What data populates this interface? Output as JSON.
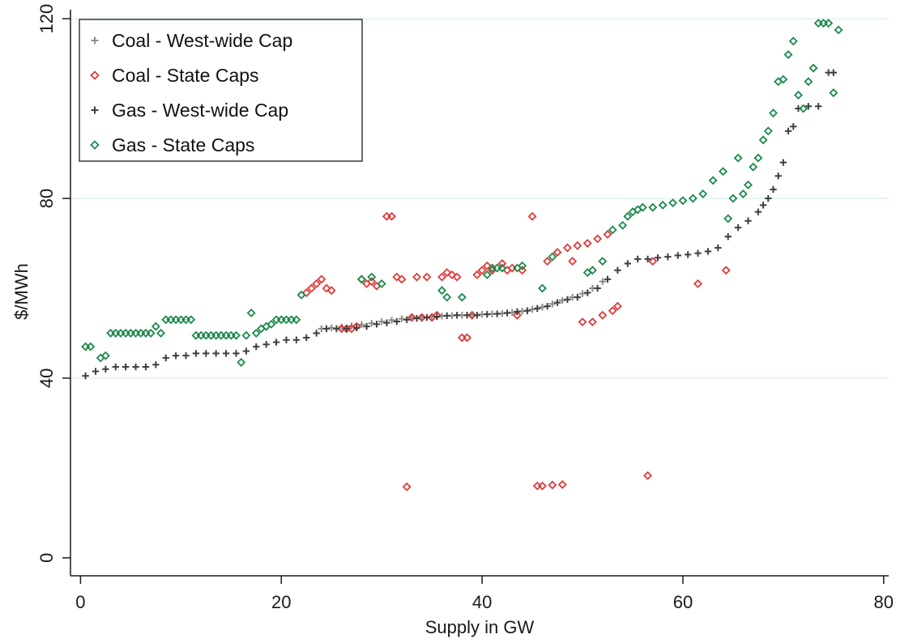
{
  "chart_data": {
    "type": "scatter",
    "title": "",
    "xlabel": "Supply in GW",
    "ylabel": "$/MWh",
    "xlim": [
      -1,
      80.5
    ],
    "ylim": [
      -4,
      122
    ],
    "xticks": [
      0,
      20,
      40,
      60,
      80
    ],
    "yticks": [
      0,
      40,
      80,
      120
    ],
    "grid": "horizontal",
    "legend_position": "top-left",
    "series": [
      {
        "name": "Coal - West-wide Cap",
        "marker": "plus",
        "color": "#8c8c8c",
        "x": [
          24,
          25,
          26,
          27,
          28,
          29,
          30,
          31,
          32,
          33,
          34,
          35,
          36,
          37,
          38,
          39,
          40,
          41,
          42,
          43,
          44,
          45,
          46,
          47,
          48,
          49,
          50,
          51,
          52
        ],
        "y": [
          51,
          51.2,
          51.4,
          51.6,
          51.9,
          52.2,
          52.6,
          52.9,
          53.2,
          53.5,
          53.6,
          53.7,
          53.8,
          53.9,
          54,
          54.1,
          54.2,
          54.3,
          54.4,
          54.6,
          54.9,
          55.3,
          55.8,
          56.5,
          57.3,
          58,
          58.8,
          60,
          61.5
        ]
      },
      {
        "name": "Coal - State Caps",
        "marker": "diamond",
        "color": "#e03a3a",
        "x": [
          22.5,
          23,
          23.5,
          24,
          24.5,
          25,
          26,
          26.5,
          27,
          27.5,
          28,
          28.5,
          29,
          29.5,
          30.5,
          31,
          31.5,
          32,
          32.5,
          33,
          33.5,
          34,
          34.5,
          35,
          35.5,
          36,
          36.5,
          37,
          37.5,
          38,
          38.5,
          39,
          39.5,
          40,
          40.5,
          41,
          42,
          42.5,
          43,
          43.5,
          44,
          45,
          45.5,
          46,
          46.5,
          47,
          47.5,
          48,
          48.5,
          49,
          49.5,
          50,
          50.5,
          51,
          51.5,
          52,
          52.5,
          53,
          53.5,
          56.5,
          57,
          61.5,
          64.3
        ],
        "y": [
          59,
          60,
          61,
          62,
          60,
          59.5,
          51,
          51,
          51,
          51.5,
          62,
          61,
          61.5,
          60.5,
          76,
          76,
          62.5,
          62,
          15.8,
          53.5,
          62.5,
          53.5,
          62.5,
          53.5,
          54,
          62.5,
          63.5,
          63,
          62.5,
          49,
          49,
          54,
          63,
          64,
          65,
          64,
          65.5,
          64,
          64.5,
          54,
          64,
          76,
          16,
          16,
          66,
          16.2,
          68,
          16.3,
          69,
          66,
          69.5,
          52.5,
          70,
          52.5,
          71,
          54,
          72,
          55,
          56,
          18.3,
          66,
          61,
          64
        ]
      },
      {
        "name": "Gas - West-wide Cap",
        "marker": "plus",
        "color": "#3f3f3f",
        "x": [
          0.5,
          1.5,
          2.5,
          3.5,
          4.5,
          5.5,
          6.5,
          7.5,
          8.5,
          9.5,
          10.5,
          11.5,
          12.5,
          13.5,
          14.5,
          15.5,
          16.5,
          17.5,
          18.5,
          19.5,
          20.5,
          21.5,
          22.5,
          23.5,
          24.5,
          25.5,
          26.5,
          27.5,
          28.5,
          29.5,
          30.5,
          31.5,
          32.5,
          33.5,
          34.5,
          35.5,
          36.5,
          37.5,
          38.5,
          39.5,
          40.5,
          41.5,
          42.5,
          43.5,
          44.5,
          45.5,
          46.5,
          47.5,
          48.5,
          49.5,
          50.5,
          51.5,
          52.5,
          53.5,
          54.5,
          55.5,
          56.5,
          57.5,
          58.5,
          59.5,
          60.5,
          61.5,
          62.5,
          63.5,
          64.5,
          65.5,
          66.5,
          67.5,
          68,
          68.5,
          69,
          69.5,
          70,
          70.5,
          71,
          71.5,
          72.5,
          73.5,
          74.5,
          75
        ],
        "y": [
          40.5,
          41.5,
          42,
          42.5,
          42.5,
          42.5,
          42.5,
          43,
          44.5,
          45,
          45,
          45.5,
          45.5,
          45.5,
          45.5,
          45.5,
          46,
          47,
          47.5,
          48,
          48.5,
          48.5,
          49,
          50,
          51,
          51,
          51,
          51.2,
          51.5,
          52,
          52.3,
          52.6,
          53,
          53.3,
          53.5,
          53.7,
          53.9,
          54,
          54,
          54,
          54.2,
          54.3,
          54.5,
          54.8,
          55,
          55.5,
          56,
          56.8,
          57.5,
          58,
          59,
          60,
          62,
          64,
          65.5,
          66.5,
          66.5,
          66.8,
          67,
          67.3,
          67.5,
          67.8,
          68.2,
          69,
          71.5,
          73.5,
          75,
          77,
          78.5,
          80,
          82,
          85,
          88,
          95,
          96,
          100,
          100.5,
          100.5,
          108,
          108
        ]
      },
      {
        "name": "Gas - State Caps",
        "marker": "diamond",
        "color": "#1a8a4a",
        "x": [
          0.5,
          1,
          2,
          2.5,
          3,
          3.5,
          4,
          4.5,
          5,
          5.5,
          6,
          6.5,
          7,
          7.5,
          8,
          8.5,
          9,
          9.5,
          10,
          10.5,
          11,
          11.5,
          12,
          12.5,
          13,
          13.5,
          14,
          14.5,
          15,
          15.5,
          16,
          16.5,
          17,
          17.5,
          18,
          18.5,
          19,
          19.5,
          20,
          20.5,
          21,
          21.5,
          22,
          28,
          29,
          30,
          36,
          36.5,
          38,
          40.5,
          41,
          41.5,
          42,
          43.5,
          44,
          46,
          47,
          50.5,
          51,
          52,
          53,
          54,
          54.5,
          55,
          55.5,
          56,
          57,
          58,
          59,
          60,
          61,
          62,
          63,
          64,
          64.5,
          65,
          65.5,
          66,
          66.5,
          67,
          67.5,
          68,
          68.5,
          69,
          69.5,
          70,
          70.5,
          71,
          71.5,
          72,
          72.5,
          73,
          73.5,
          74,
          74.5,
          75,
          75.5
        ],
        "y": [
          47,
          47,
          44.5,
          45,
          50,
          50,
          50,
          50,
          50,
          50,
          50,
          50,
          50,
          51.5,
          50,
          53,
          53,
          53,
          53,
          53,
          53,
          49.5,
          49.5,
          49.5,
          49.5,
          49.5,
          49.5,
          49.5,
          49.5,
          49.5,
          43.5,
          49.5,
          54.5,
          50,
          51,
          51.5,
          52,
          53,
          53,
          53,
          53,
          53,
          58.5,
          62,
          62.5,
          61,
          59.5,
          58,
          58,
          63,
          64.5,
          64.5,
          64.5,
          64.5,
          65,
          60,
          67,
          63.5,
          64,
          66,
          73,
          74,
          76,
          77,
          77.5,
          78,
          78,
          78.5,
          79,
          79.5,
          80,
          81,
          84,
          86,
          75.5,
          80,
          89,
          81,
          83,
          87,
          89,
          93,
          95,
          99,
          106,
          106.5,
          112,
          115,
          103,
          100,
          106,
          109,
          119,
          119,
          119,
          103.5,
          117.5
        ]
      }
    ]
  }
}
